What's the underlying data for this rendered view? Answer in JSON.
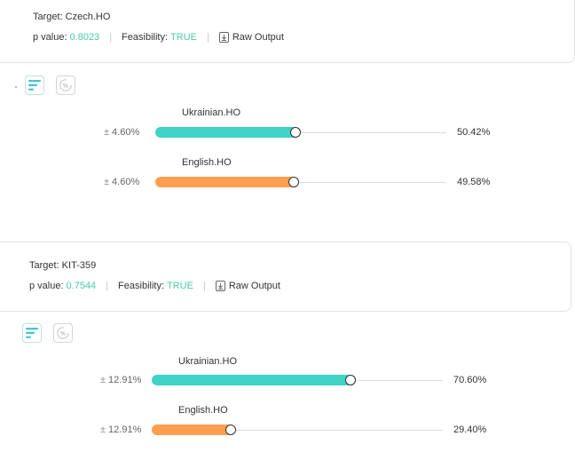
{
  "panels": [
    {
      "target_label": "Target: Czech.HO",
      "p_value_label": "p value:",
      "p_value": "0.8023",
      "feasibility_label": "Feasibility:",
      "feasibility": "TRUE",
      "raw_output_label": "Raw Output",
      "rows": [
        {
          "name": "Ukrainian.HO",
          "margin": "4.60%",
          "percent_text": "50.42%",
          "value": 0.5042,
          "color": "teal"
        },
        {
          "name": "English.HO",
          "margin": "4.60%",
          "percent_text": "49.58%",
          "value": 0.4958,
          "color": "orange"
        }
      ]
    },
    {
      "target_label": "Target: KIT-359",
      "p_value_label": "p value:",
      "p_value": "0.7544",
      "feasibility_label": "Feasibility:",
      "feasibility": "TRUE",
      "raw_output_label": "Raw Output",
      "rows": [
        {
          "name": "Ukrainian.HO",
          "margin": "12.91%",
          "percent_text": "70.60%",
          "value": 0.706,
          "color": "teal"
        },
        {
          "name": "English.HO",
          "margin": "12.91%",
          "percent_text": "29.40%",
          "value": 0.294,
          "color": "orange"
        }
      ]
    }
  ],
  "plus_minus_symbol": "±",
  "percent_icon_text": "%",
  "colors": {
    "teal": "#3fd2c7",
    "orange": "#ff9f4f",
    "green_text": "#48c9a9"
  },
  "icons": [
    "bars-icon",
    "percent-icon",
    "download-icon"
  ]
}
